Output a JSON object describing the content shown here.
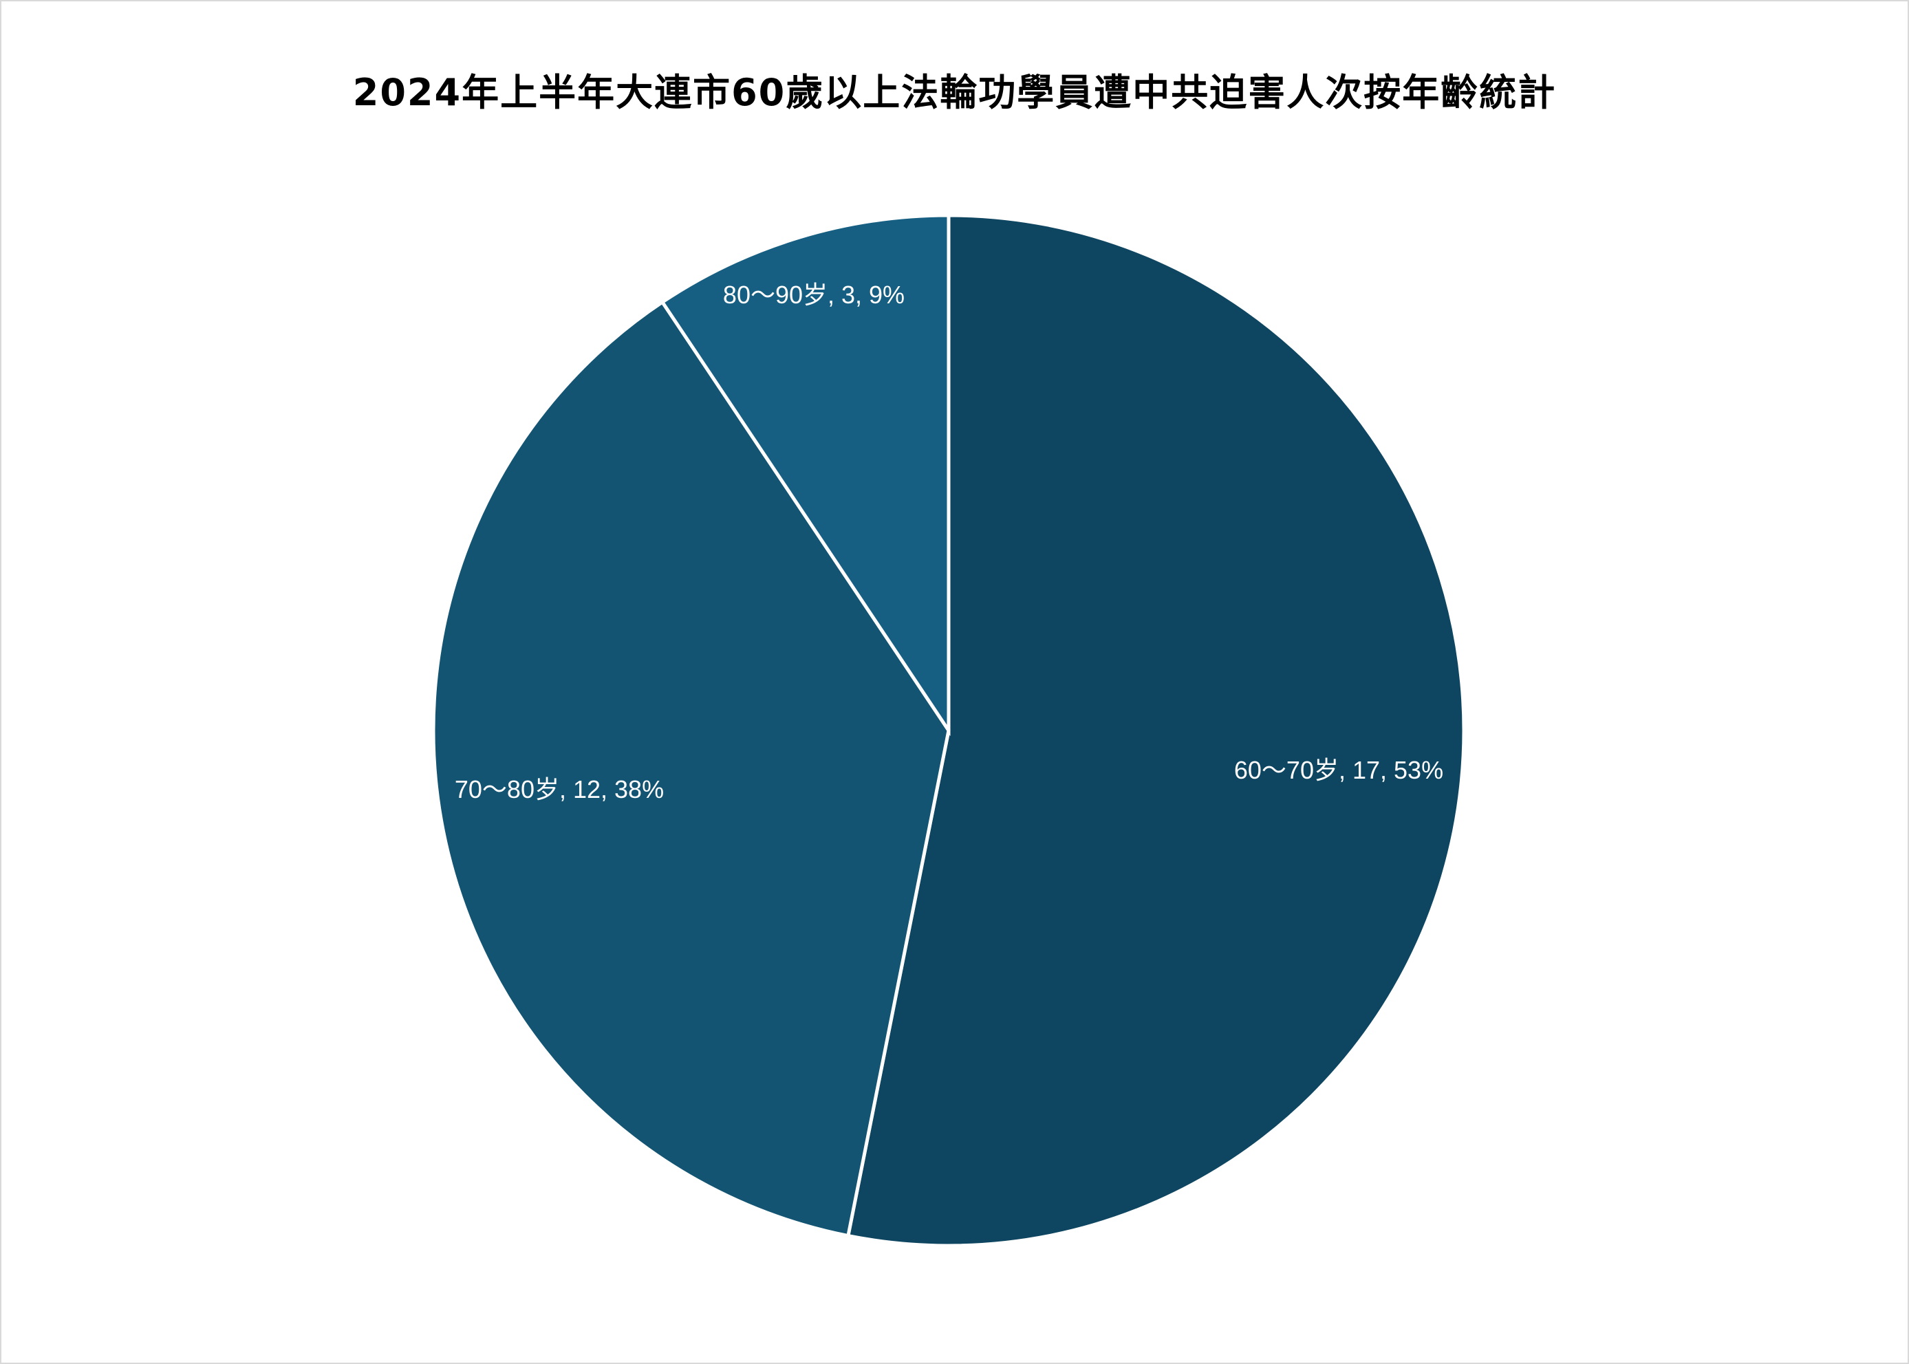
{
  "chart_data": {
    "type": "pie",
    "title": "2024年上半年大連市60歲以上法輪功學員遭中共迫害人次按年齡統計",
    "start_angle": "top",
    "direction": "clockwise",
    "slices": [
      {
        "label": "60～70岁",
        "value": 17,
        "percent": "53%",
        "color": "#0e4661",
        "data_label": "60～70岁, 17, 53%"
      },
      {
        "label": "70～80岁",
        "value": 12,
        "percent": "38%",
        "color": "#125472",
        "data_label": "70～80岁, 12, 38%"
      },
      {
        "label": "80～90岁",
        "value": 3,
        "percent": "9%",
        "color": "#165f82",
        "data_label": "80～90岁, 3, 9%"
      }
    ],
    "legend": "none"
  }
}
